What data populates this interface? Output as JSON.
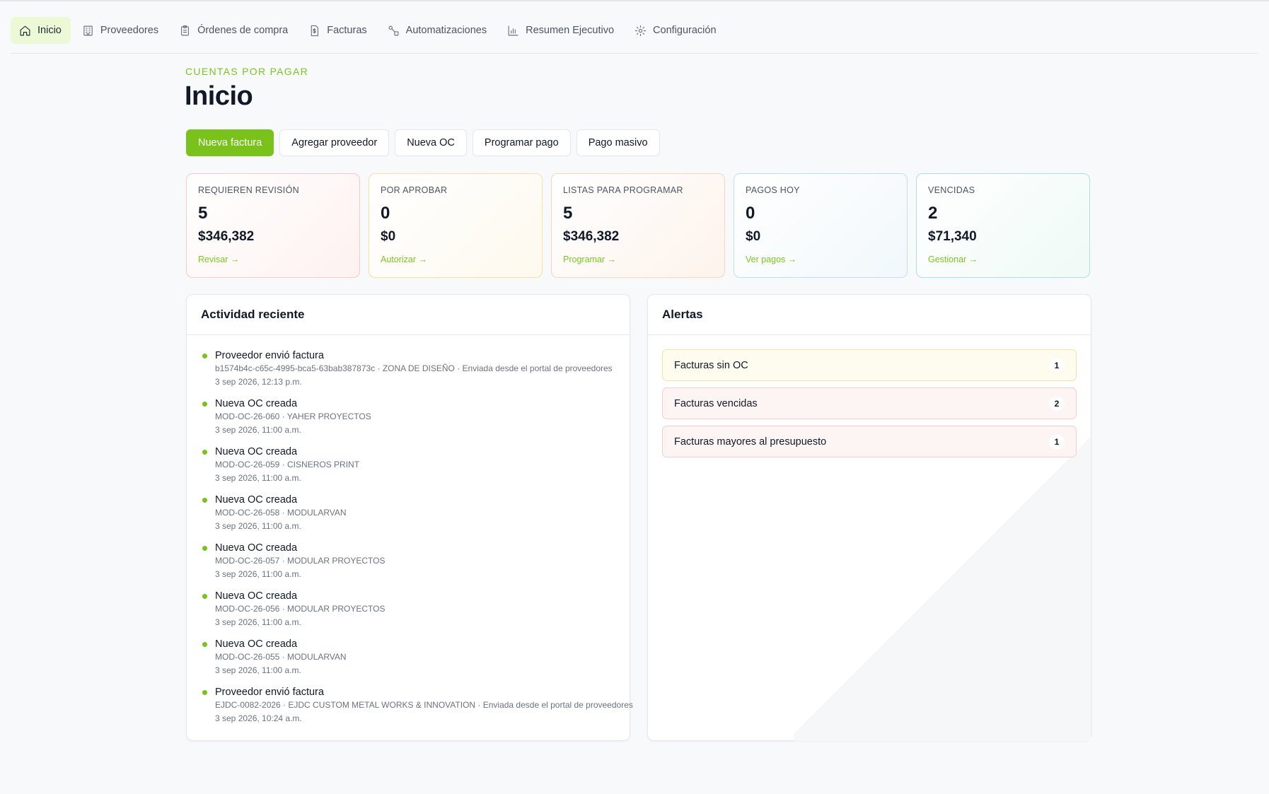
{
  "nav": {
    "items": [
      {
        "label": "Inicio",
        "icon": "home-icon",
        "active": true
      },
      {
        "label": "Proveedores",
        "icon": "building-icon",
        "active": false
      },
      {
        "label": "Órdenes de compra",
        "icon": "clipboard-icon",
        "active": false
      },
      {
        "label": "Facturas",
        "icon": "invoice-icon",
        "active": false
      },
      {
        "label": "Automatizaciones",
        "icon": "workflow-icon",
        "active": false
      },
      {
        "label": "Resumen Ejecutivo",
        "icon": "bar-chart-icon",
        "active": false
      },
      {
        "label": "Configuración",
        "icon": "gear-icon",
        "active": false
      }
    ]
  },
  "header": {
    "eyebrow": "CUENTAS POR PAGAR",
    "title": "Inicio"
  },
  "actions": {
    "new_invoice": "Nueva factura",
    "add_vendor": "Agregar proveedor",
    "new_po": "Nueva OC",
    "schedule_payment": "Programar pago",
    "bulk_payment": "Pago masivo"
  },
  "stats": [
    {
      "label": "REQUIEREN REVISIÓN",
      "count": "5",
      "amount": "$346,382",
      "link": "Revisar →"
    },
    {
      "label": "POR APROBAR",
      "count": "0",
      "amount": "$0",
      "link": "Autorizar →"
    },
    {
      "label": "LISTAS PARA PROGRAMAR",
      "count": "5",
      "amount": "$346,382",
      "link": "Programar →"
    },
    {
      "label": "PAGOS HOY",
      "count": "0",
      "amount": "$0",
      "link": "Ver pagos →"
    },
    {
      "label": "VENCIDAS",
      "count": "2",
      "amount": "$71,340",
      "link": "Gestionar →"
    }
  ],
  "activity": {
    "title": "Actividad reciente",
    "items": [
      {
        "title": "Proveedor envió factura",
        "detail": "b1574b4c-c65c-4995-bca5-63bab387873c · ZONA DE DISEÑO · Enviada desde el portal de proveedores",
        "time": "3 sep 2026, 12:13 p.m."
      },
      {
        "title": "Nueva OC creada",
        "detail": "MOD-OC-26-060 · YAHER PROYECTOS",
        "time": "3 sep 2026, 11:00 a.m."
      },
      {
        "title": "Nueva OC creada",
        "detail": "MOD-OC-26-059 · CISNEROS PRINT",
        "time": "3 sep 2026, 11:00 a.m."
      },
      {
        "title": "Nueva OC creada",
        "detail": "MOD-OC-26-058 · MODULARVAN",
        "time": "3 sep 2026, 11:00 a.m."
      },
      {
        "title": "Nueva OC creada",
        "detail": "MOD-OC-26-057 · MODULAR PROYECTOS",
        "time": "3 sep 2026, 11:00 a.m."
      },
      {
        "title": "Nueva OC creada",
        "detail": "MOD-OC-26-056 · MODULAR PROYECTOS",
        "time": "3 sep 2026, 11:00 a.m."
      },
      {
        "title": "Nueva OC creada",
        "detail": "MOD-OC-26-055 · MODULARVAN",
        "time": "3 sep 2026, 11:00 a.m."
      },
      {
        "title": "Proveedor envió factura",
        "detail": "EJDC-0082-2026 · EJDC CUSTOM METAL WORKS & INNOVATION · Enviada desde el portal de proveedores",
        "time": "3 sep 2026, 10:24 a.m."
      }
    ]
  },
  "alerts": {
    "title": "Alertas",
    "items": [
      {
        "label": "Facturas sin OC",
        "count": "1"
      },
      {
        "label": "Facturas vencidas",
        "count": "2"
      },
      {
        "label": "Facturas mayores al presupuesto",
        "count": "1"
      }
    ]
  },
  "colors": {
    "accent": "#79c21b",
    "active_nav_bg": "#ecf8d6"
  }
}
